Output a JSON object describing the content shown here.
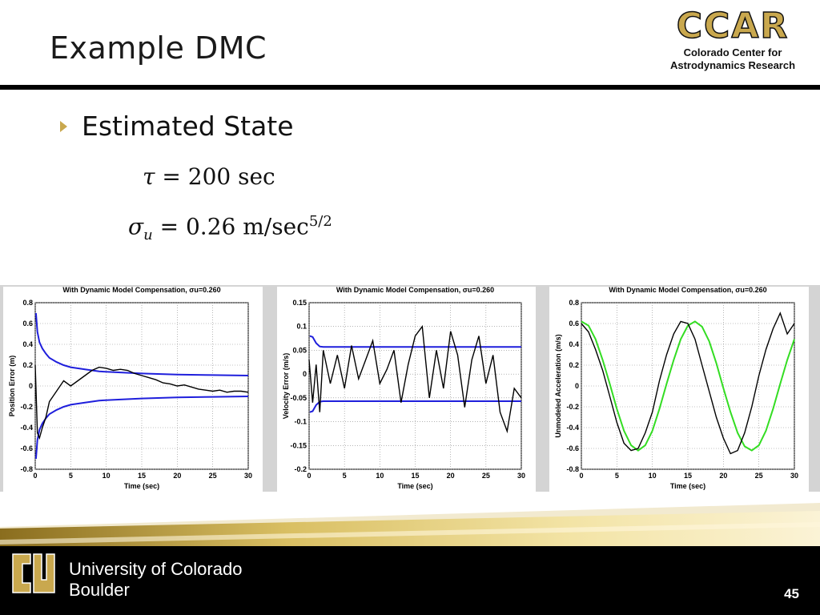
{
  "slide": {
    "title": "Example DMC",
    "page_number": "45"
  },
  "logo": {
    "name": "CCAR",
    "subtitle_line1": "Colorado Center for",
    "subtitle_line2": "Astrodynamics Research"
  },
  "bullet": {
    "text": "Estimated State"
  },
  "equations": {
    "tau_symbol": "τ",
    "tau_rhs": "= 200 sec",
    "sigma_symbol": "σ",
    "sigma_sub": "u",
    "sigma_rhs": "= 0.26 m/sec",
    "sigma_exp": "5/2"
  },
  "footer": {
    "university_line1": "University of Colorado",
    "university_line2": "Boulder"
  },
  "colors": {
    "gold": "#c9a84e",
    "bound_line": "#1f1fdc",
    "estimate_line": "#000000",
    "truth_line": "#33dd22"
  },
  "chart_data": [
    {
      "type": "line",
      "title": "With Dynamic Model Compensation,  σu=0.260",
      "xlabel": "Time (sec)",
      "ylabel": "Position Error (m)",
      "xlim": [
        0,
        30
      ],
      "ylim": [
        -0.8,
        0.8
      ],
      "xticks": [
        "0",
        "5",
        "10",
        "15",
        "20",
        "25",
        "30"
      ],
      "yticks": [
        "0.8",
        "0.6",
        "0.4",
        "0.2",
        "0",
        "-0.2",
        "-0.4",
        "-0.6",
        "-0.8"
      ],
      "grid": true,
      "series": [
        {
          "color": "#1f1fdc",
          "x": [
            0.1,
            0.3,
            0.6,
            1,
            1.5,
            2,
            3,
            4,
            5,
            7,
            9,
            12,
            15,
            20,
            25,
            30
          ],
          "y": [
            0.7,
            0.52,
            0.42,
            0.36,
            0.31,
            0.27,
            0.23,
            0.2,
            0.18,
            0.16,
            0.14,
            0.13,
            0.12,
            0.11,
            0.105,
            0.1
          ]
        },
        {
          "color": "#1f1fdc",
          "x": [
            0.1,
            0.3,
            0.6,
            1,
            1.5,
            2,
            3,
            4,
            5,
            7,
            9,
            12,
            15,
            20,
            25,
            30
          ],
          "y": [
            -0.7,
            -0.52,
            -0.42,
            -0.36,
            -0.31,
            -0.27,
            -0.23,
            -0.2,
            -0.18,
            -0.16,
            -0.14,
            -0.13,
            -0.12,
            -0.11,
            -0.105,
            -0.1
          ]
        },
        {
          "color": "#000000",
          "x": [
            0,
            0.3,
            0.6,
            1,
            1.5,
            2,
            3,
            4,
            5,
            6,
            7,
            8,
            9,
            10,
            11,
            12,
            13,
            14,
            15,
            16,
            17,
            18,
            19,
            20,
            21,
            22,
            23,
            24,
            25,
            26,
            27,
            28,
            29,
            30
          ],
          "y": [
            0.2,
            -0.45,
            -0.5,
            -0.4,
            -0.3,
            -0.15,
            -0.05,
            0.05,
            0.0,
            0.05,
            0.1,
            0.15,
            0.18,
            0.17,
            0.15,
            0.16,
            0.15,
            0.12,
            0.1,
            0.08,
            0.06,
            0.03,
            0.02,
            0.0,
            0.01,
            -0.01,
            -0.03,
            -0.04,
            -0.05,
            -0.04,
            -0.06,
            -0.05,
            -0.05,
            -0.06
          ]
        }
      ]
    },
    {
      "type": "line",
      "title": "With Dynamic Model Compensation,  σu=0.260",
      "xlabel": "Time (sec)",
      "ylabel": "Velocity Error (m/s)",
      "xlim": [
        0,
        30
      ],
      "ylim": [
        -0.2,
        0.15
      ],
      "xticks": [
        "0",
        "5",
        "10",
        "15",
        "20",
        "25",
        "30"
      ],
      "yticks": [
        "0.15",
        "0.1",
        "0.05",
        "0",
        "-0.05",
        "-0.1",
        "-0.15",
        "-0.2"
      ],
      "grid": true,
      "series": [
        {
          "color": "#1f1fdc",
          "x": [
            0.1,
            0.5,
            1,
            1.5,
            2,
            3,
            5,
            10,
            20,
            30
          ],
          "y": [
            0.08,
            0.078,
            0.065,
            0.058,
            0.057,
            0.057,
            0.057,
            0.057,
            0.057,
            0.057
          ]
        },
        {
          "color": "#1f1fdc",
          "x": [
            0.1,
            0.5,
            1,
            1.5,
            2,
            3,
            5,
            10,
            20,
            30
          ],
          "y": [
            -0.08,
            -0.078,
            -0.065,
            -0.058,
            -0.057,
            -0.057,
            -0.057,
            -0.057,
            -0.057,
            -0.057
          ]
        },
        {
          "color": "#000000",
          "x": [
            0,
            0.5,
            1,
            1.5,
            2,
            3,
            4,
            5,
            6,
            7,
            8,
            9,
            10,
            11,
            12,
            13,
            14,
            15,
            16,
            17,
            18,
            19,
            20,
            21,
            22,
            23,
            24,
            25,
            26,
            27,
            28,
            29,
            30
          ],
          "y": [
            0.03,
            -0.06,
            0.02,
            -0.08,
            0.05,
            -0.02,
            0.04,
            -0.03,
            0.06,
            -0.01,
            0.03,
            0.07,
            -0.02,
            0.01,
            0.05,
            -0.06,
            0.02,
            0.08,
            0.1,
            -0.05,
            0.05,
            -0.03,
            0.09,
            0.04,
            -0.07,
            0.03,
            0.08,
            -0.02,
            0.04,
            -0.08,
            -0.12,
            -0.03,
            -0.05
          ]
        }
      ]
    },
    {
      "type": "line",
      "title": "With Dynamic Model Compensation,  σu=0.260",
      "xlabel": "Time (sec)",
      "ylabel": "Unmodeled Acceleration (m/s)",
      "xlim": [
        0,
        30
      ],
      "ylim": [
        -0.8,
        0.8
      ],
      "xticks": [
        "0",
        "5",
        "10",
        "15",
        "20",
        "25",
        "30"
      ],
      "yticks": [
        "0.8",
        "0.6",
        "0.4",
        "0.2",
        "0",
        "-0.2",
        "-0.4",
        "-0.6",
        "-0.8"
      ],
      "grid": true,
      "series": [
        {
          "color": "#33dd22",
          "x": [
            0,
            1,
            2,
            3,
            4,
            5,
            6,
            7,
            8,
            9,
            10,
            11,
            12,
            13,
            14,
            15,
            16,
            17,
            18,
            19,
            20,
            21,
            22,
            23,
            24,
            25,
            26,
            27,
            28,
            29,
            30
          ],
          "y": [
            0.62,
            0.58,
            0.45,
            0.25,
            0.02,
            -0.22,
            -0.43,
            -0.57,
            -0.62,
            -0.57,
            -0.43,
            -0.22,
            0.02,
            0.25,
            0.45,
            0.58,
            0.62,
            0.57,
            0.43,
            0.22,
            -0.02,
            -0.25,
            -0.45,
            -0.58,
            -0.62,
            -0.57,
            -0.43,
            -0.22,
            0.02,
            0.25,
            0.45
          ]
        },
        {
          "color": "#000000",
          "x": [
            0,
            1,
            2,
            3,
            4,
            5,
            6,
            7,
            8,
            9,
            10,
            11,
            12,
            13,
            14,
            15,
            16,
            17,
            18,
            19,
            20,
            21,
            22,
            23,
            24,
            25,
            26,
            27,
            28,
            29,
            30
          ],
          "y": [
            0.6,
            0.52,
            0.35,
            0.15,
            -0.1,
            -0.35,
            -0.55,
            -0.62,
            -0.6,
            -0.45,
            -0.25,
            0.05,
            0.3,
            0.5,
            0.62,
            0.6,
            0.45,
            0.2,
            -0.05,
            -0.3,
            -0.5,
            -0.65,
            -0.62,
            -0.45,
            -0.2,
            0.1,
            0.35,
            0.55,
            0.7,
            0.5,
            0.6
          ]
        }
      ]
    }
  ]
}
